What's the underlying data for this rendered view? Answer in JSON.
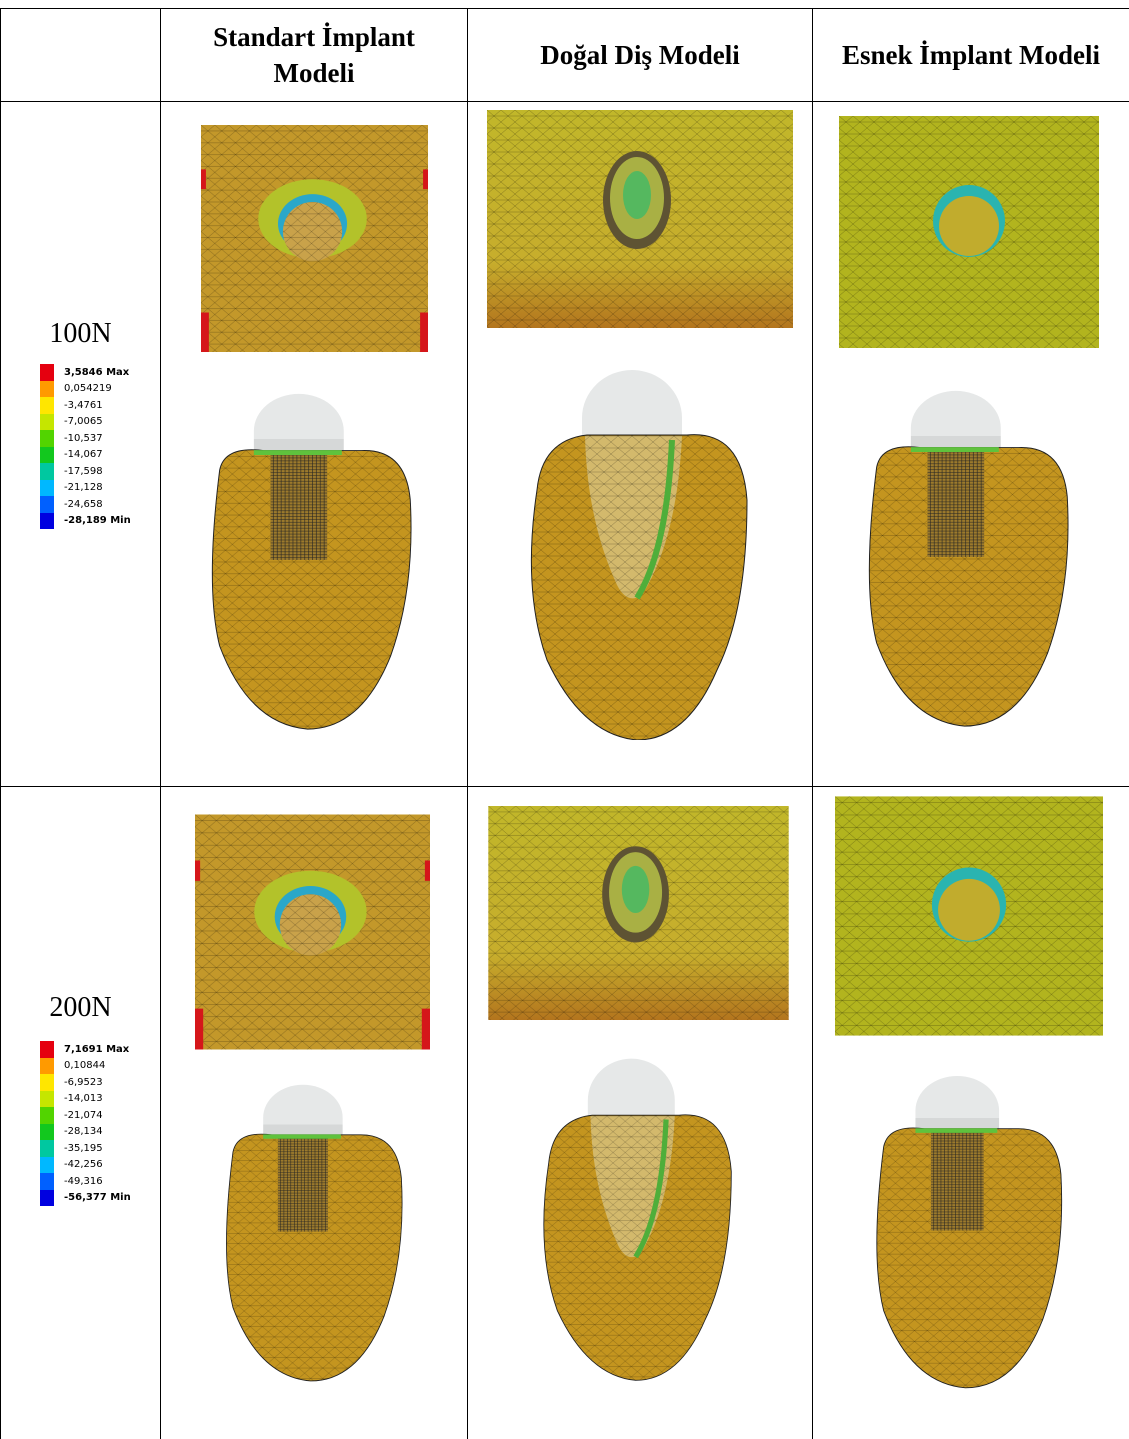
{
  "table": {
    "header": [
      "Standart İmplant Modeli",
      "Doğal Diş Modeli",
      "Esnek İmplant Modeli"
    ],
    "rows": [
      {
        "load": "100N",
        "legend": [
          "3,5846 Max",
          "0,054219",
          "-3,4761",
          "-7,0065",
          "-10,537",
          "-14,067",
          "-17,598",
          "-21,128",
          "-24,658",
          "-28,189 Min"
        ]
      },
      {
        "load": "200N",
        "legend": [
          "7,1691 Max",
          "0,10844",
          "-6,9523",
          "-14,013",
          "-21,074",
          "-28,134",
          "-35,195",
          "-42,256",
          "-49,316",
          "-56,377 Min"
        ]
      }
    ]
  }
}
